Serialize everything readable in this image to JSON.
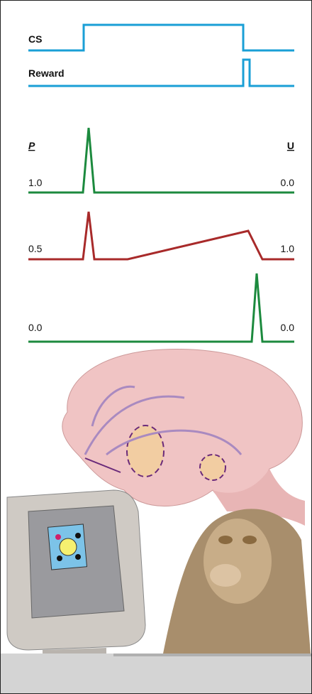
{
  "signals": {
    "cs": "CS",
    "reward": "Reward"
  },
  "axes": {
    "p": "P",
    "u": "U"
  },
  "traces": [
    {
      "p": "1.0",
      "u": "0.0"
    },
    {
      "p": "0.5",
      "u": "1.0"
    },
    {
      "p": "0.0",
      "u": "0.0"
    }
  ]
}
